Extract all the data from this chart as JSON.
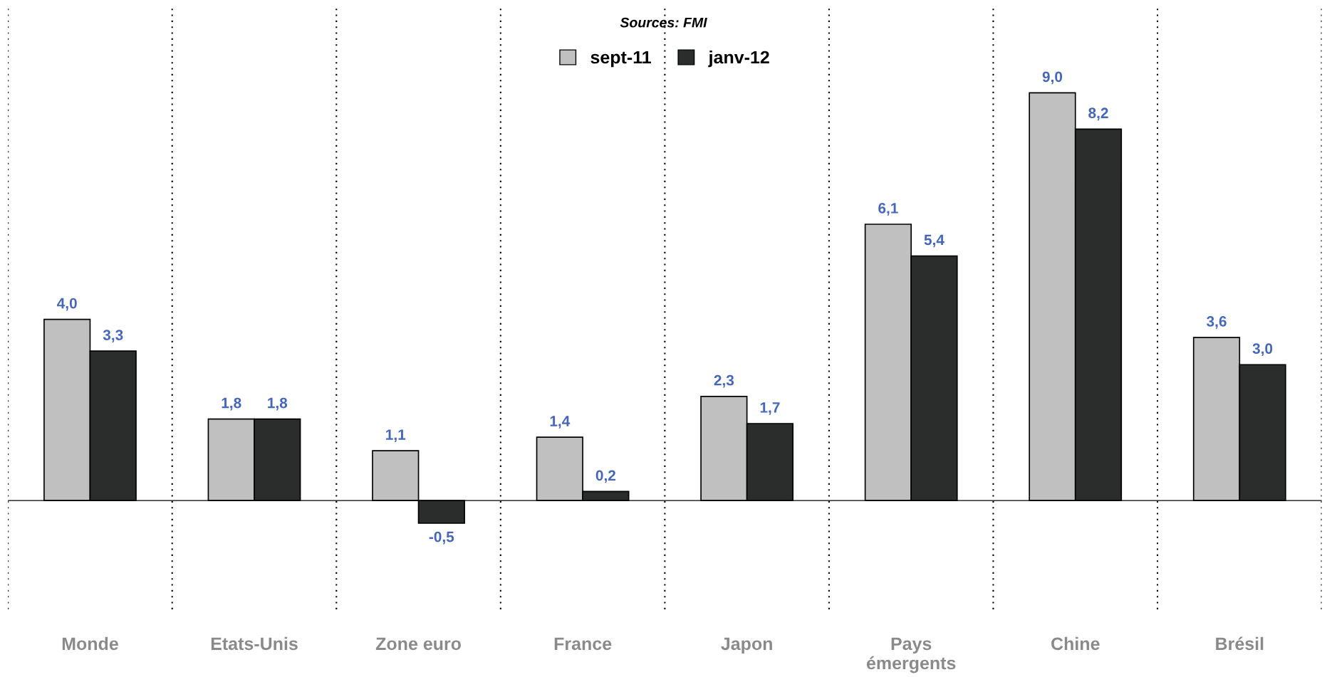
{
  "chart_data": {
    "type": "bar",
    "categories": [
      "Monde",
      "Etats-Unis",
      "Zone euro",
      "France",
      "Japon",
      "Pays\némergents",
      "Chine",
      "Brésil"
    ],
    "series": [
      {
        "name": "sept-11",
        "color": "#c0c0c0",
        "values": [
          4.0,
          1.8,
          1.1,
          1.4,
          2.3,
          6.1,
          9.0,
          3.6
        ],
        "value_labels": [
          "4,0",
          "1,8",
          "1,1",
          "1,4",
          "2,3",
          "6,1",
          "9,0",
          "3,6"
        ]
      },
      {
        "name": "janv-12",
        "color": "#2b2d2c",
        "values": [
          3.3,
          1.8,
          -0.5,
          0.2,
          1.7,
          5.4,
          8.2,
          3.0
        ],
        "value_labels": [
          "3,3",
          "1,8",
          "-0,5",
          "0,2",
          "1,7",
          "5,4",
          "8,2",
          "3,0"
        ]
      }
    ],
    "annotations": [
      "Sources: FMI"
    ],
    "tick_labels": "x",
    "grid": "x",
    "legend": "top"
  }
}
